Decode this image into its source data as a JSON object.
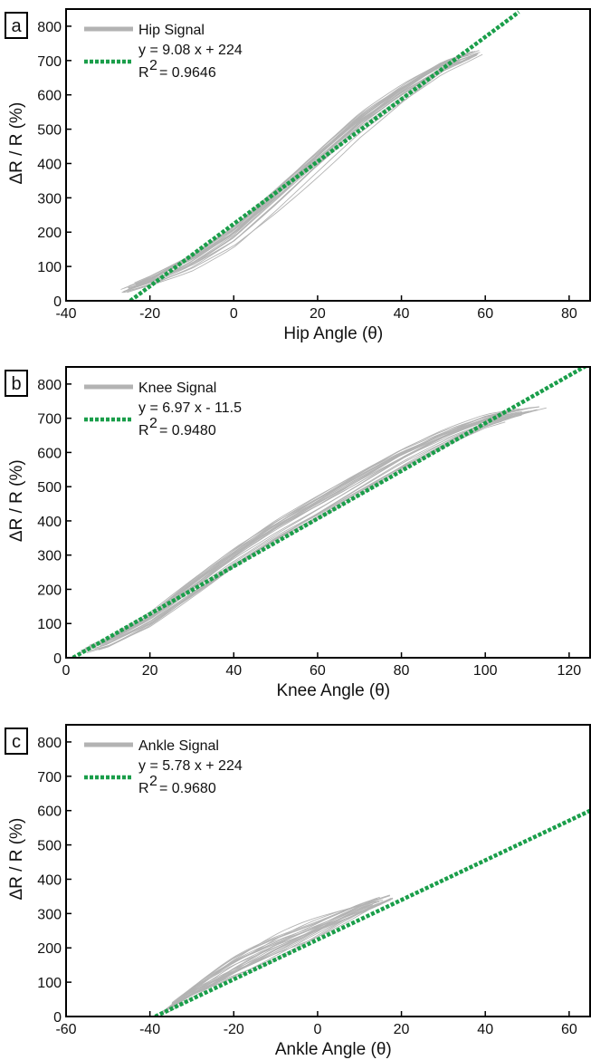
{
  "chart_data": [
    {
      "type": "line",
      "panel_label": "a",
      "xlabel": "Hip Angle (θ)",
      "ylabel": "ΔR / R (%)",
      "xlim": [
        -40,
        85
      ],
      "ylim": [
        0,
        850
      ],
      "xticks": [
        -40,
        -20,
        0,
        20,
        40,
        60,
        80
      ],
      "yticks": [
        0,
        100,
        200,
        300,
        400,
        500,
        600,
        700,
        800
      ],
      "grid": false,
      "legend_position": "top-left",
      "series": [
        {
          "name": "Hip Signal",
          "kind": "signal",
          "color": "#b3b3b3",
          "x": [
            -27,
            -20,
            -10,
            0,
            10,
            20,
            30,
            40,
            50,
            60
          ],
          "y": [
            25,
            55,
            110,
            185,
            290,
            400,
            510,
            600,
            680,
            730
          ]
        },
        {
          "name": "y = 9.08 x  + 224",
          "kind": "fit",
          "color": "#1a9e4a",
          "slope": 9.08,
          "intercept": 224,
          "x_range": [
            -24.7,
            68
          ]
        }
      ],
      "r2_label": "R",
      "r2_exponent": "2",
      "r2_value": "= 0.9646"
    },
    {
      "type": "line",
      "panel_label": "b",
      "xlabel": "Knee Angle (θ)",
      "ylabel": "ΔR / R (%)",
      "xlim": [
        0,
        125
      ],
      "ylim": [
        0,
        850
      ],
      "xticks": [
        0,
        20,
        40,
        60,
        80,
        100,
        120
      ],
      "yticks": [
        0,
        100,
        200,
        300,
        400,
        500,
        600,
        700,
        800
      ],
      "grid": false,
      "legend_position": "top-left",
      "series": [
        {
          "name": "Knee Signal",
          "kind": "signal",
          "color": "#b3b3b3",
          "x": [
            3,
            10,
            20,
            30,
            40,
            50,
            60,
            70,
            80,
            90,
            100,
            110,
            115
          ],
          "y": [
            15,
            45,
            110,
            200,
            290,
            370,
            440,
            510,
            580,
            640,
            690,
            720,
            730
          ]
        },
        {
          "name": "y = 6.97 x  - 11.5",
          "kind": "fit",
          "color": "#1a9e4a",
          "slope": 6.97,
          "intercept": -11.5,
          "x_range": [
            1.65,
            125
          ]
        }
      ],
      "r2_label": "R",
      "r2_exponent": "2",
      "r2_value": "= 0.9480"
    },
    {
      "type": "line",
      "panel_label": "c",
      "xlabel": "Ankle Angle (θ)",
      "ylabel": "ΔR / R (%)",
      "xlim": [
        -60,
        65
      ],
      "ylim": [
        0,
        850
      ],
      "xticks": [
        -60,
        -40,
        -20,
        0,
        20,
        40,
        60
      ],
      "yticks": [
        0,
        100,
        200,
        300,
        400,
        500,
        600,
        700,
        800
      ],
      "grid": false,
      "legend_position": "top-left",
      "series": [
        {
          "name": "Ankle Signal",
          "kind": "signal",
          "color": "#b3b3b3",
          "x": [
            -37,
            -30,
            -20,
            -10,
            0,
            10,
            18
          ],
          "y": [
            10,
            70,
            140,
            200,
            255,
            310,
            350
          ]
        },
        {
          "name": "y = 5.78 x  + 224",
          "kind": "fit",
          "color": "#1a9e4a",
          "slope": 5.78,
          "intercept": 224,
          "x_range": [
            -38.75,
            65
          ]
        }
      ],
      "r2_label": "R",
      "r2_exponent": "2",
      "r2_value": "= 0.9680"
    }
  ]
}
